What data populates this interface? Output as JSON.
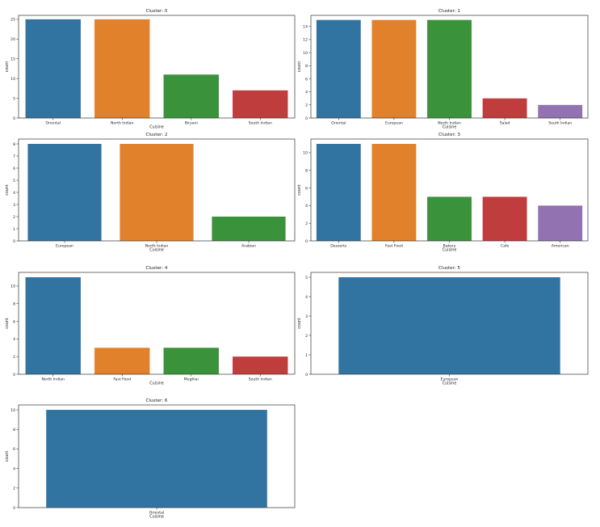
{
  "chart_data": [
    {
      "type": "bar",
      "title": "Cluster: 0",
      "xlabel": "Cuisine",
      "ylabel": "count",
      "categories": [
        "Oriental",
        "North Indian",
        "Biryani",
        "South Indian"
      ],
      "values": [
        25,
        25,
        11,
        7
      ],
      "colors": [
        "#3274a1",
        "#e1812c",
        "#3a923a",
        "#c03d3e"
      ],
      "ylim": [
        0,
        26
      ],
      "yticks": [
        0,
        5,
        10,
        15,
        20,
        25
      ],
      "grid": false
    },
    {
      "type": "bar",
      "title": "Cluster: 1",
      "xlabel": "Cuisine",
      "ylabel": "count",
      "categories": [
        "Oriental",
        "European",
        "North Indian",
        "Salad",
        "South Indian"
      ],
      "values": [
        15,
        15,
        15,
        3,
        2
      ],
      "colors": [
        "#3274a1",
        "#e1812c",
        "#3a923a",
        "#c03d3e",
        "#9372b2"
      ],
      "ylim": [
        0,
        15.7
      ],
      "yticks": [
        0,
        2,
        4,
        6,
        8,
        10,
        12,
        14
      ],
      "grid": false
    },
    {
      "type": "bar",
      "title": "Cluster: 2",
      "xlabel": "Cuisine",
      "ylabel": "count",
      "categories": [
        "European",
        "North Indian",
        "Arabian"
      ],
      "values": [
        8,
        8,
        2
      ],
      "colors": [
        "#3274a1",
        "#e1812c",
        "#3a923a"
      ],
      "ylim": [
        0,
        8.4
      ],
      "yticks": [
        0,
        1,
        2,
        3,
        4,
        5,
        6,
        7,
        8
      ],
      "grid": false
    },
    {
      "type": "bar",
      "title": "Cluster: 3",
      "xlabel": "Cuisine",
      "ylabel": "count",
      "categories": [
        "Desserts",
        "Fast Food",
        "Bakery",
        "Cafe",
        "American"
      ],
      "values": [
        11,
        11,
        5,
        5,
        4
      ],
      "colors": [
        "#3274a1",
        "#e1812c",
        "#3a923a",
        "#c03d3e",
        "#9372b2"
      ],
      "ylim": [
        0,
        11.55
      ],
      "yticks": [
        0,
        2,
        4,
        6,
        8,
        10
      ],
      "grid": false
    },
    {
      "type": "bar",
      "title": "Cluster: 4",
      "xlabel": "Cuisine",
      "ylabel": "count",
      "categories": [
        "North Indian",
        "Fast Food",
        "Mughlai",
        "South Indian"
      ],
      "values": [
        11,
        3,
        3,
        2
      ],
      "colors": [
        "#3274a1",
        "#e1812c",
        "#3a923a",
        "#c03d3e"
      ],
      "ylim": [
        0,
        11.55
      ],
      "yticks": [
        0,
        2,
        4,
        6,
        8,
        10
      ],
      "grid": false
    },
    {
      "type": "bar",
      "title": "Cluster: 5",
      "xlabel": "Cuisine",
      "ylabel": "count",
      "categories": [
        "European"
      ],
      "values": [
        5
      ],
      "colors": [
        "#3274a1"
      ],
      "ylim": [
        0,
        5.25
      ],
      "yticks": [
        0,
        1,
        2,
        3,
        4,
        5
      ],
      "grid": false
    },
    {
      "type": "bar",
      "title": "Cluster: 6",
      "xlabel": "Cuisine",
      "ylabel": "count",
      "categories": [
        "Oriental"
      ],
      "values": [
        10
      ],
      "colors": [
        "#3274a1"
      ],
      "ylim": [
        0,
        10.5
      ],
      "yticks": [
        0,
        2,
        4,
        6,
        8,
        10
      ],
      "grid": false
    }
  ]
}
